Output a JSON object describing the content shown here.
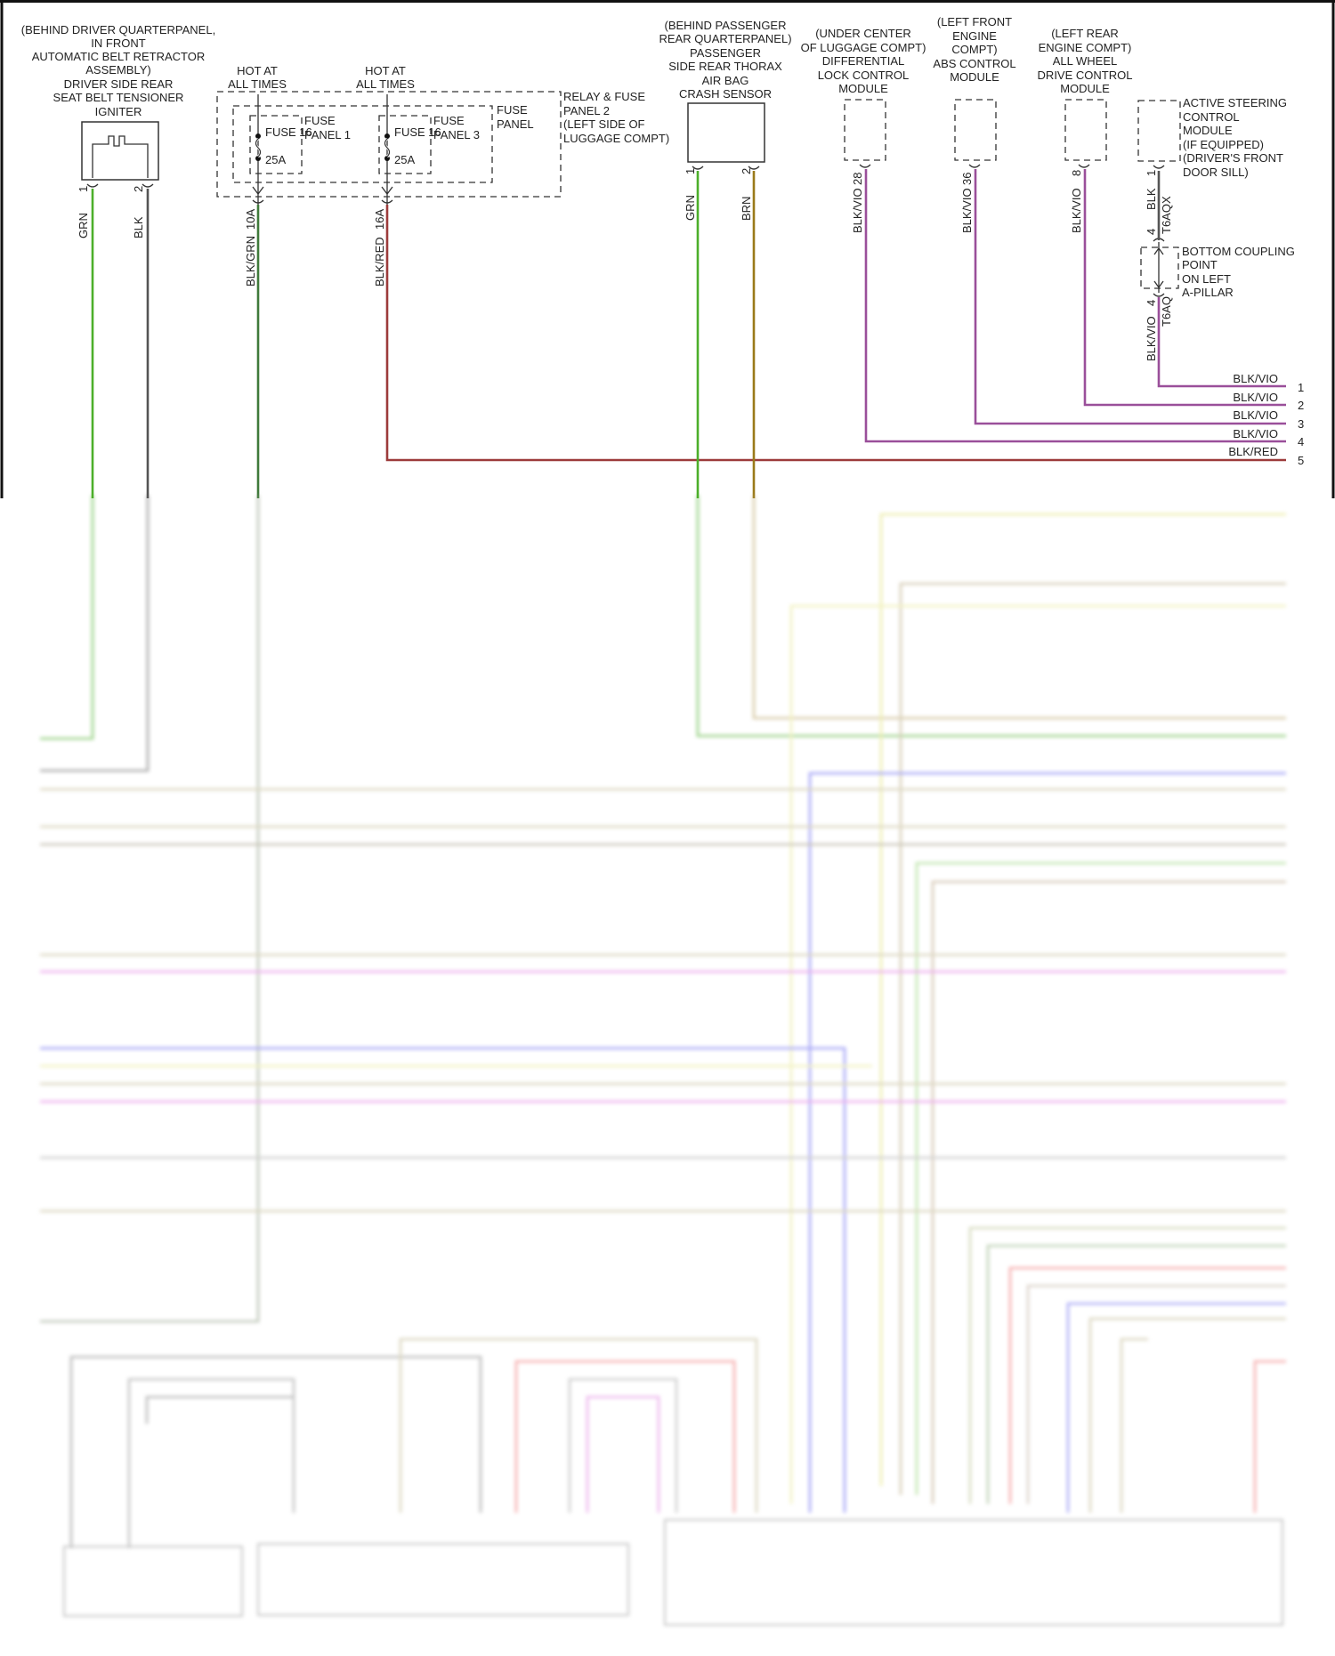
{
  "colors": {
    "grn": "#4caf2a",
    "blk": "#555555",
    "blk_grn": "#3f7a3a",
    "blk_red": "#9c3b3b",
    "brn": "#9a7a1a",
    "blk_vio": "#9a4f9a"
  },
  "igniter": {
    "label": [
      "(BEHIND DRIVER QUARTERPANEL,",
      "IN FRONT",
      "AUTOMATIC BELT RETRACTOR",
      "ASSEMBLY)",
      "DRIVER SIDE REAR",
      "SEAT BELT TENSIONER",
      "IGNITER"
    ],
    "pins": [
      "1",
      "2"
    ],
    "wires": [
      "GRN",
      "BLK"
    ]
  },
  "fuse_panel": {
    "hot1": [
      "HOT AT",
      "ALL TIMES"
    ],
    "hot2": [
      "HOT AT",
      "ALL TIMES"
    ],
    "fuse1": {
      "name": "FUSE 16",
      "rating": "25A",
      "panel": [
        "FUSE",
        "PANEL 1"
      ]
    },
    "fuse2": {
      "name": "FUSE 16",
      "rating": "25A",
      "panel": [
        "FUSE",
        "PANEL 3"
      ]
    },
    "inner_label": [
      "FUSE",
      "PANEL"
    ],
    "outer_label": [
      "RELAY & FUSE",
      "PANEL 2",
      "(LEFT SIDE OF",
      "LUGGAGE COMPT)"
    ],
    "pins": [
      "10A",
      "16A"
    ],
    "wires": [
      "BLK/GRN",
      "BLK/RED"
    ]
  },
  "crash_sensor": {
    "label": [
      "(BEHIND PASSENGER",
      "REAR QUARTERPANEL)",
      "PASSENGER",
      "SIDE REAR THORAX",
      "AIR BAG",
      "CRASH SENSOR"
    ],
    "pins": [
      "1",
      "2"
    ],
    "wires": [
      "GRN",
      "BRN"
    ]
  },
  "diff_module": {
    "label": [
      "(UNDER CENTER",
      "OF LUGGAGE COMPT)",
      "DIFFERENTIAL",
      "LOCK CONTROL",
      "MODULE"
    ],
    "pin": "28",
    "wire": "BLK/VIO"
  },
  "abs_module": {
    "label": [
      "(LEFT FRONT",
      "ENGINE",
      "COMPT)",
      "ABS CONTROL",
      "MODULE"
    ],
    "pin": "36",
    "wire": "BLK/VIO"
  },
  "awd_module": {
    "label": [
      "(LEFT REAR",
      "ENGINE COMPT)",
      "ALL WHEEL",
      "DRIVE CONTROL",
      "MODULE"
    ],
    "pin": "8",
    "wire": "BLK/VIO"
  },
  "steering_module": {
    "label": [
      "ACTIVE STEERING",
      "CONTROL",
      "MODULE",
      "(IF EQUIPPED)",
      "(DRIVER'S FRONT",
      "DOOR SILL)"
    ],
    "pin": "1",
    "wire": "BLK",
    "connector": "T6AQX",
    "pin2": "4"
  },
  "coupling": {
    "label": [
      "BOTTOM COUPLING",
      "POINT",
      "ON LEFT",
      "A-PILLAR"
    ],
    "pin": "4",
    "connector": "T6AQ",
    "wire": "BLK/VIO"
  },
  "outputs": [
    {
      "wire": "BLK/VIO",
      "num": "1"
    },
    {
      "wire": "BLK/VIO",
      "num": "2"
    },
    {
      "wire": "BLK/VIO",
      "num": "3"
    },
    {
      "wire": "BLK/VIO",
      "num": "4"
    },
    {
      "wire": "BLK/RED",
      "num": "5"
    }
  ]
}
